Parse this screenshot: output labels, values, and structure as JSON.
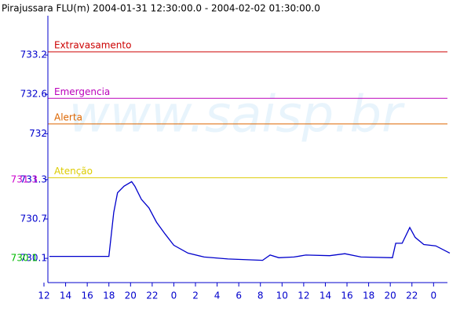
{
  "chart_data": {
    "type": "line",
    "title": "Pirajussara FLU(m) 2004-01-31 12:30:00.0 - 2004-02-02 01:30:00.0",
    "watermark": "www.saisp.br",
    "x": [
      12.5,
      18.0,
      18.45,
      18.8,
      19.4,
      20.1,
      20.4,
      21.0,
      21.7,
      22.4,
      23.2,
      24.0,
      25.3,
      26.8,
      29.0,
      32.2,
      32.9,
      33.7,
      35.1,
      36.2,
      38.4,
      39.8,
      41.3,
      44.2,
      44.5,
      45.1,
      45.8,
      46.3,
      47.1,
      48.2,
      49.5
    ],
    "series": [
      {
        "color": "#0000cc",
        "values": [
          730.13,
          730.13,
          730.8,
          731.1,
          731.2,
          731.27,
          731.2,
          731.0,
          730.87,
          730.65,
          730.47,
          730.3,
          730.18,
          730.12,
          730.09,
          730.07,
          730.15,
          730.11,
          730.12,
          730.15,
          730.14,
          730.17,
          730.12,
          730.11,
          730.33,
          730.33,
          730.57,
          730.42,
          730.31,
          730.29,
          730.18
        ]
      }
    ],
    "xlim": [
      12,
      49.5
    ],
    "ylim": [
      729.73,
      733.8
    ],
    "xticks": [
      12,
      14,
      16,
      18,
      20,
      22,
      {
        "value": 24,
        "label": "0"
      },
      {
        "value": 26,
        "label": "2"
      },
      {
        "value": 28,
        "label": "4"
      },
      {
        "value": 30,
        "label": "6"
      },
      {
        "value": 32,
        "label": "8"
      },
      {
        "value": 34,
        "label": "10"
      },
      {
        "value": 36,
        "label": "12"
      },
      {
        "value": 38,
        "label": "14"
      },
      {
        "value": 40,
        "label": "16"
      },
      {
        "value": 42,
        "label": "18"
      },
      {
        "value": 44,
        "label": "20"
      },
      {
        "value": 46,
        "label": "22"
      },
      {
        "value": 48,
        "label": "0"
      }
    ],
    "yticks": [
      733.2,
      732.6,
      732.0,
      731.3,
      730.7,
      730.1
    ],
    "thresholds": [
      {
        "name": "Extravasamento",
        "value": 733.25,
        "color": "#cc0000"
      },
      {
        "name": "Emergencia",
        "value": 732.54,
        "color": "#bb00bb"
      },
      {
        "name": "Alerta",
        "value": 732.15,
        "color": "#dd6600"
      },
      {
        "name": "Atenção",
        "value": 731.33,
        "color": "#ddcc00"
      }
    ],
    "annotations": [
      {
        "value": 731.3,
        "color": "#cc00cc"
      },
      {
        "value": 730.1,
        "color": "#00bb00"
      }
    ]
  }
}
